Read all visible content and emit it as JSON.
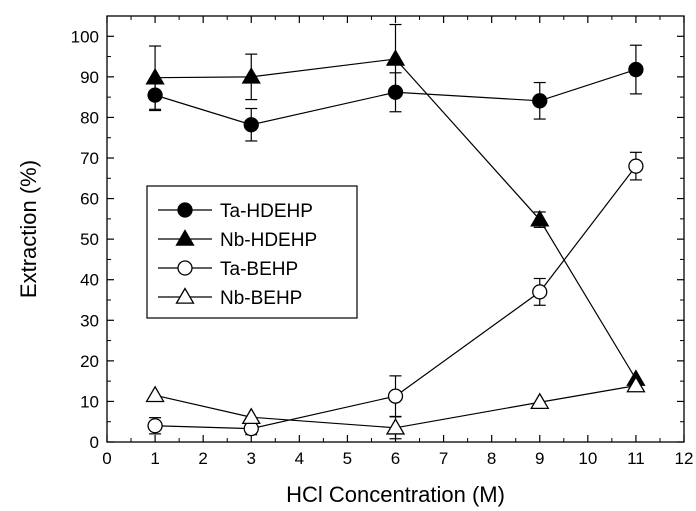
{
  "chart_data": {
    "type": "line",
    "title": "",
    "xlabel": "HCl Concentration (M)",
    "ylabel": "Extraction (%)",
    "xlim": [
      0,
      12
    ],
    "ylim": [
      0,
      105
    ],
    "xticks": [
      0,
      1,
      2,
      3,
      4,
      5,
      6,
      7,
      8,
      9,
      10,
      11,
      12
    ],
    "yticks": [
      0,
      10,
      20,
      30,
      40,
      50,
      60,
      70,
      80,
      90,
      100
    ],
    "grid": false,
    "legend_position": "center-left",
    "series": [
      {
        "name": "Ta-HDEHP",
        "marker": "circle-filled",
        "x": [
          1,
          3,
          6,
          9,
          11
        ],
        "y": [
          85.5,
          78.2,
          86.2,
          84.1,
          91.8
        ],
        "err": [
          3.8,
          4.0,
          4.8,
          4.5,
          6.0
        ]
      },
      {
        "name": "Nb-HDEHP",
        "marker": "triangle-filled",
        "x": [
          1,
          3,
          6,
          9,
          11
        ],
        "y": [
          89.8,
          90.0,
          94.4,
          54.8,
          15.5
        ],
        "err": [
          7.8,
          5.6,
          8.5,
          1.9,
          0
        ]
      },
      {
        "name": "Ta-BEHP",
        "marker": "circle-open",
        "x": [
          1,
          3,
          6,
          9,
          11
        ],
        "y": [
          4.0,
          3.3,
          11.3,
          37.0,
          68.0
        ],
        "err": [
          2.0,
          1.5,
          5.0,
          3.3,
          3.4
        ]
      },
      {
        "name": "Nb-BEHP",
        "marker": "triangle-open",
        "x": [
          1,
          3,
          6,
          9,
          11
        ],
        "y": [
          11.5,
          6.1,
          3.5,
          9.8,
          13.9
        ],
        "err": [
          0,
          0,
          2.7,
          0,
          0
        ]
      }
    ]
  }
}
